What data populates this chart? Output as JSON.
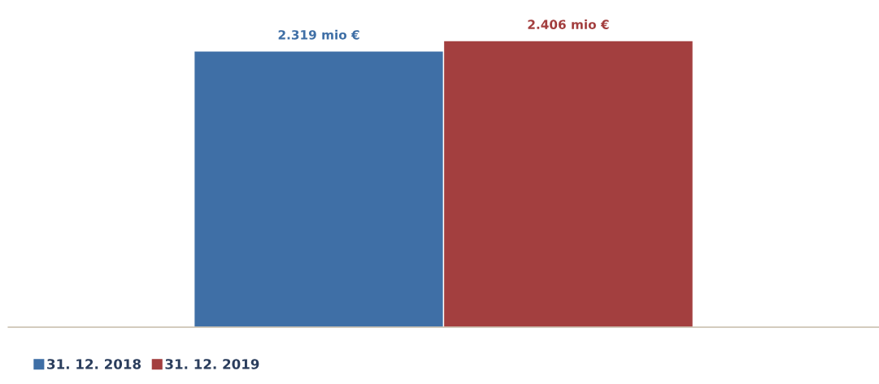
{
  "chart_data": {
    "type": "bar",
    "categories": [
      null
    ],
    "series": [
      {
        "name": "31. 12. 2018",
        "color": "#3f6fa6",
        "values": [
          2.319
        ],
        "value_labels": [
          "2.319 mio €"
        ]
      },
      {
        "name": "31. 12. 2019",
        "color": "#a33f3f",
        "values": [
          2.406
        ],
        "value_labels": [
          "2.406 mio €"
        ]
      }
    ],
    "legend": "bottom left"
  }
}
